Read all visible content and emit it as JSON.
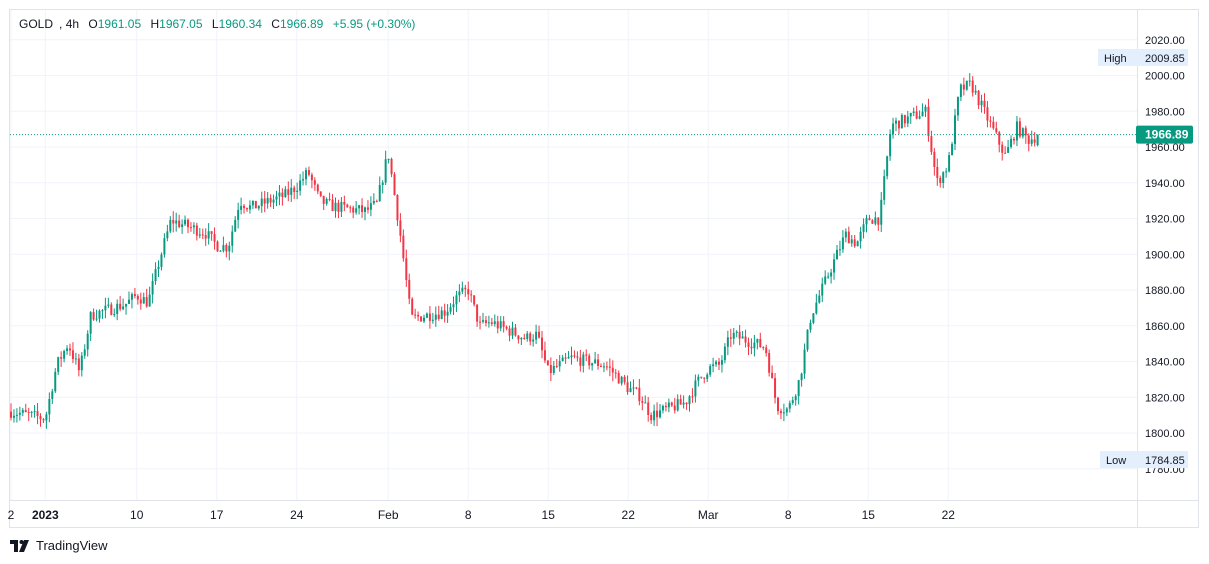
{
  "header": {
    "symbol": "GOLD",
    "interval": "4h",
    "open_label": "O",
    "open": "1961.05",
    "high_label": "H",
    "high": "1967.05",
    "low_label": "L",
    "low": "1960.34",
    "close_label": "C",
    "close": "1966.89",
    "change": "+5.95 (+0.30%)"
  },
  "markers": {
    "high_label": "High",
    "high_value": "2009.85",
    "low_label": "Low",
    "low_value": "1784.85",
    "last_price": "1966.89"
  },
  "brand": {
    "name": "TradingView"
  },
  "colors": {
    "up": "#089981",
    "down": "#f23645",
    "last_price_badge": "#089981",
    "marker_bg": "#e3effd"
  },
  "chart_data": {
    "type": "candlestick",
    "ylim": [
      1770,
      2030
    ],
    "y_ticks": [
      "1780.00",
      "1800.00",
      "1820.00",
      "1840.00",
      "1860.00",
      "1880.00",
      "1900.00",
      "1920.00",
      "1940.00",
      "1960.00",
      "1980.00",
      "2000.00",
      "2020.00"
    ],
    "x_ticks": [
      {
        "label": "2",
        "date": "2022-12-30"
      },
      {
        "label": "2023",
        "date": "2023-01-02"
      },
      {
        "label": "10",
        "date": "2023-01-10"
      },
      {
        "label": "17",
        "date": "2023-01-17"
      },
      {
        "label": "24",
        "date": "2023-01-24"
      },
      {
        "label": "Feb",
        "date": "2023-02-01"
      },
      {
        "label": "8",
        "date": "2023-02-08"
      },
      {
        "label": "15",
        "date": "2023-02-15"
      },
      {
        "label": "22",
        "date": "2023-02-22"
      },
      {
        "label": "Mar",
        "date": "2023-03-01"
      },
      {
        "label": "8",
        "date": "2023-03-08"
      },
      {
        "label": "15",
        "date": "2023-03-15"
      },
      {
        "label": "22",
        "date": "2023-03-22"
      }
    ],
    "close_path": [
      [
        "2022-12-30",
        1812
      ],
      [
        "2023-01-02",
        1808
      ],
      [
        "2023-01-03",
        1838
      ],
      [
        "2023-01-04",
        1850
      ],
      [
        "2023-01-05",
        1834
      ],
      [
        "2023-01-06",
        1866
      ],
      [
        "2023-01-09",
        1872
      ],
      [
        "2023-01-10",
        1877
      ],
      [
        "2023-01-11",
        1873
      ],
      [
        "2023-01-12",
        1897
      ],
      [
        "2023-01-13",
        1919
      ],
      [
        "2023-01-16",
        1912
      ],
      [
        "2023-01-17",
        1905
      ],
      [
        "2023-01-18",
        1904
      ],
      [
        "2023-01-19",
        1930
      ],
      [
        "2023-01-20",
        1926
      ],
      [
        "2023-01-23",
        1933
      ],
      [
        "2023-01-24",
        1938
      ],
      [
        "2023-01-25",
        1946
      ],
      [
        "2023-01-26",
        1930
      ],
      [
        "2023-01-27",
        1927
      ],
      [
        "2023-01-30",
        1924
      ],
      [
        "2023-01-31",
        1928
      ],
      [
        "2023-02-01",
        1957
      ],
      [
        "2023-02-02",
        1914
      ],
      [
        "2023-02-03",
        1864
      ],
      [
        "2023-02-06",
        1868
      ],
      [
        "2023-02-07",
        1876
      ],
      [
        "2023-02-08",
        1880
      ],
      [
        "2023-02-09",
        1860
      ],
      [
        "2023-02-10",
        1862
      ],
      [
        "2023-02-13",
        1853
      ],
      [
        "2023-02-14",
        1855
      ],
      [
        "2023-02-15",
        1834
      ],
      [
        "2023-02-16",
        1838
      ],
      [
        "2023-02-17",
        1842
      ],
      [
        "2023-02-20",
        1838
      ],
      [
        "2023-02-21",
        1832
      ],
      [
        "2023-02-22",
        1825
      ],
      [
        "2023-02-23",
        1821
      ],
      [
        "2023-02-24",
        1810
      ],
      [
        "2023-02-27",
        1817
      ],
      [
        "2023-02-28",
        1828
      ],
      [
        "2023-03-01",
        1836
      ],
      [
        "2023-03-02",
        1838
      ],
      [
        "2023-03-03",
        1855
      ],
      [
        "2023-03-06",
        1848
      ],
      [
        "2023-03-07",
        1815
      ],
      [
        "2023-03-08",
        1813
      ],
      [
        "2023-03-09",
        1830
      ],
      [
        "2023-03-10",
        1866
      ],
      [
        "2023-03-13",
        1911
      ],
      [
        "2023-03-14",
        1906
      ],
      [
        "2023-03-15",
        1920
      ],
      [
        "2023-03-16",
        1920
      ],
      [
        "2023-03-17",
        1972
      ],
      [
        "2023-03-20",
        1980
      ],
      [
        "2023-03-21",
        1940
      ],
      [
        "2023-03-22",
        1950
      ],
      [
        "2023-03-23",
        1992
      ],
      [
        "2023-03-24",
        1995
      ],
      [
        "2023-03-27",
        1955
      ],
      [
        "2023-03-28",
        1971
      ],
      [
        "2023-03-29",
        1964
      ],
      [
        "2023-03-30",
        1966.89
      ]
    ]
  }
}
